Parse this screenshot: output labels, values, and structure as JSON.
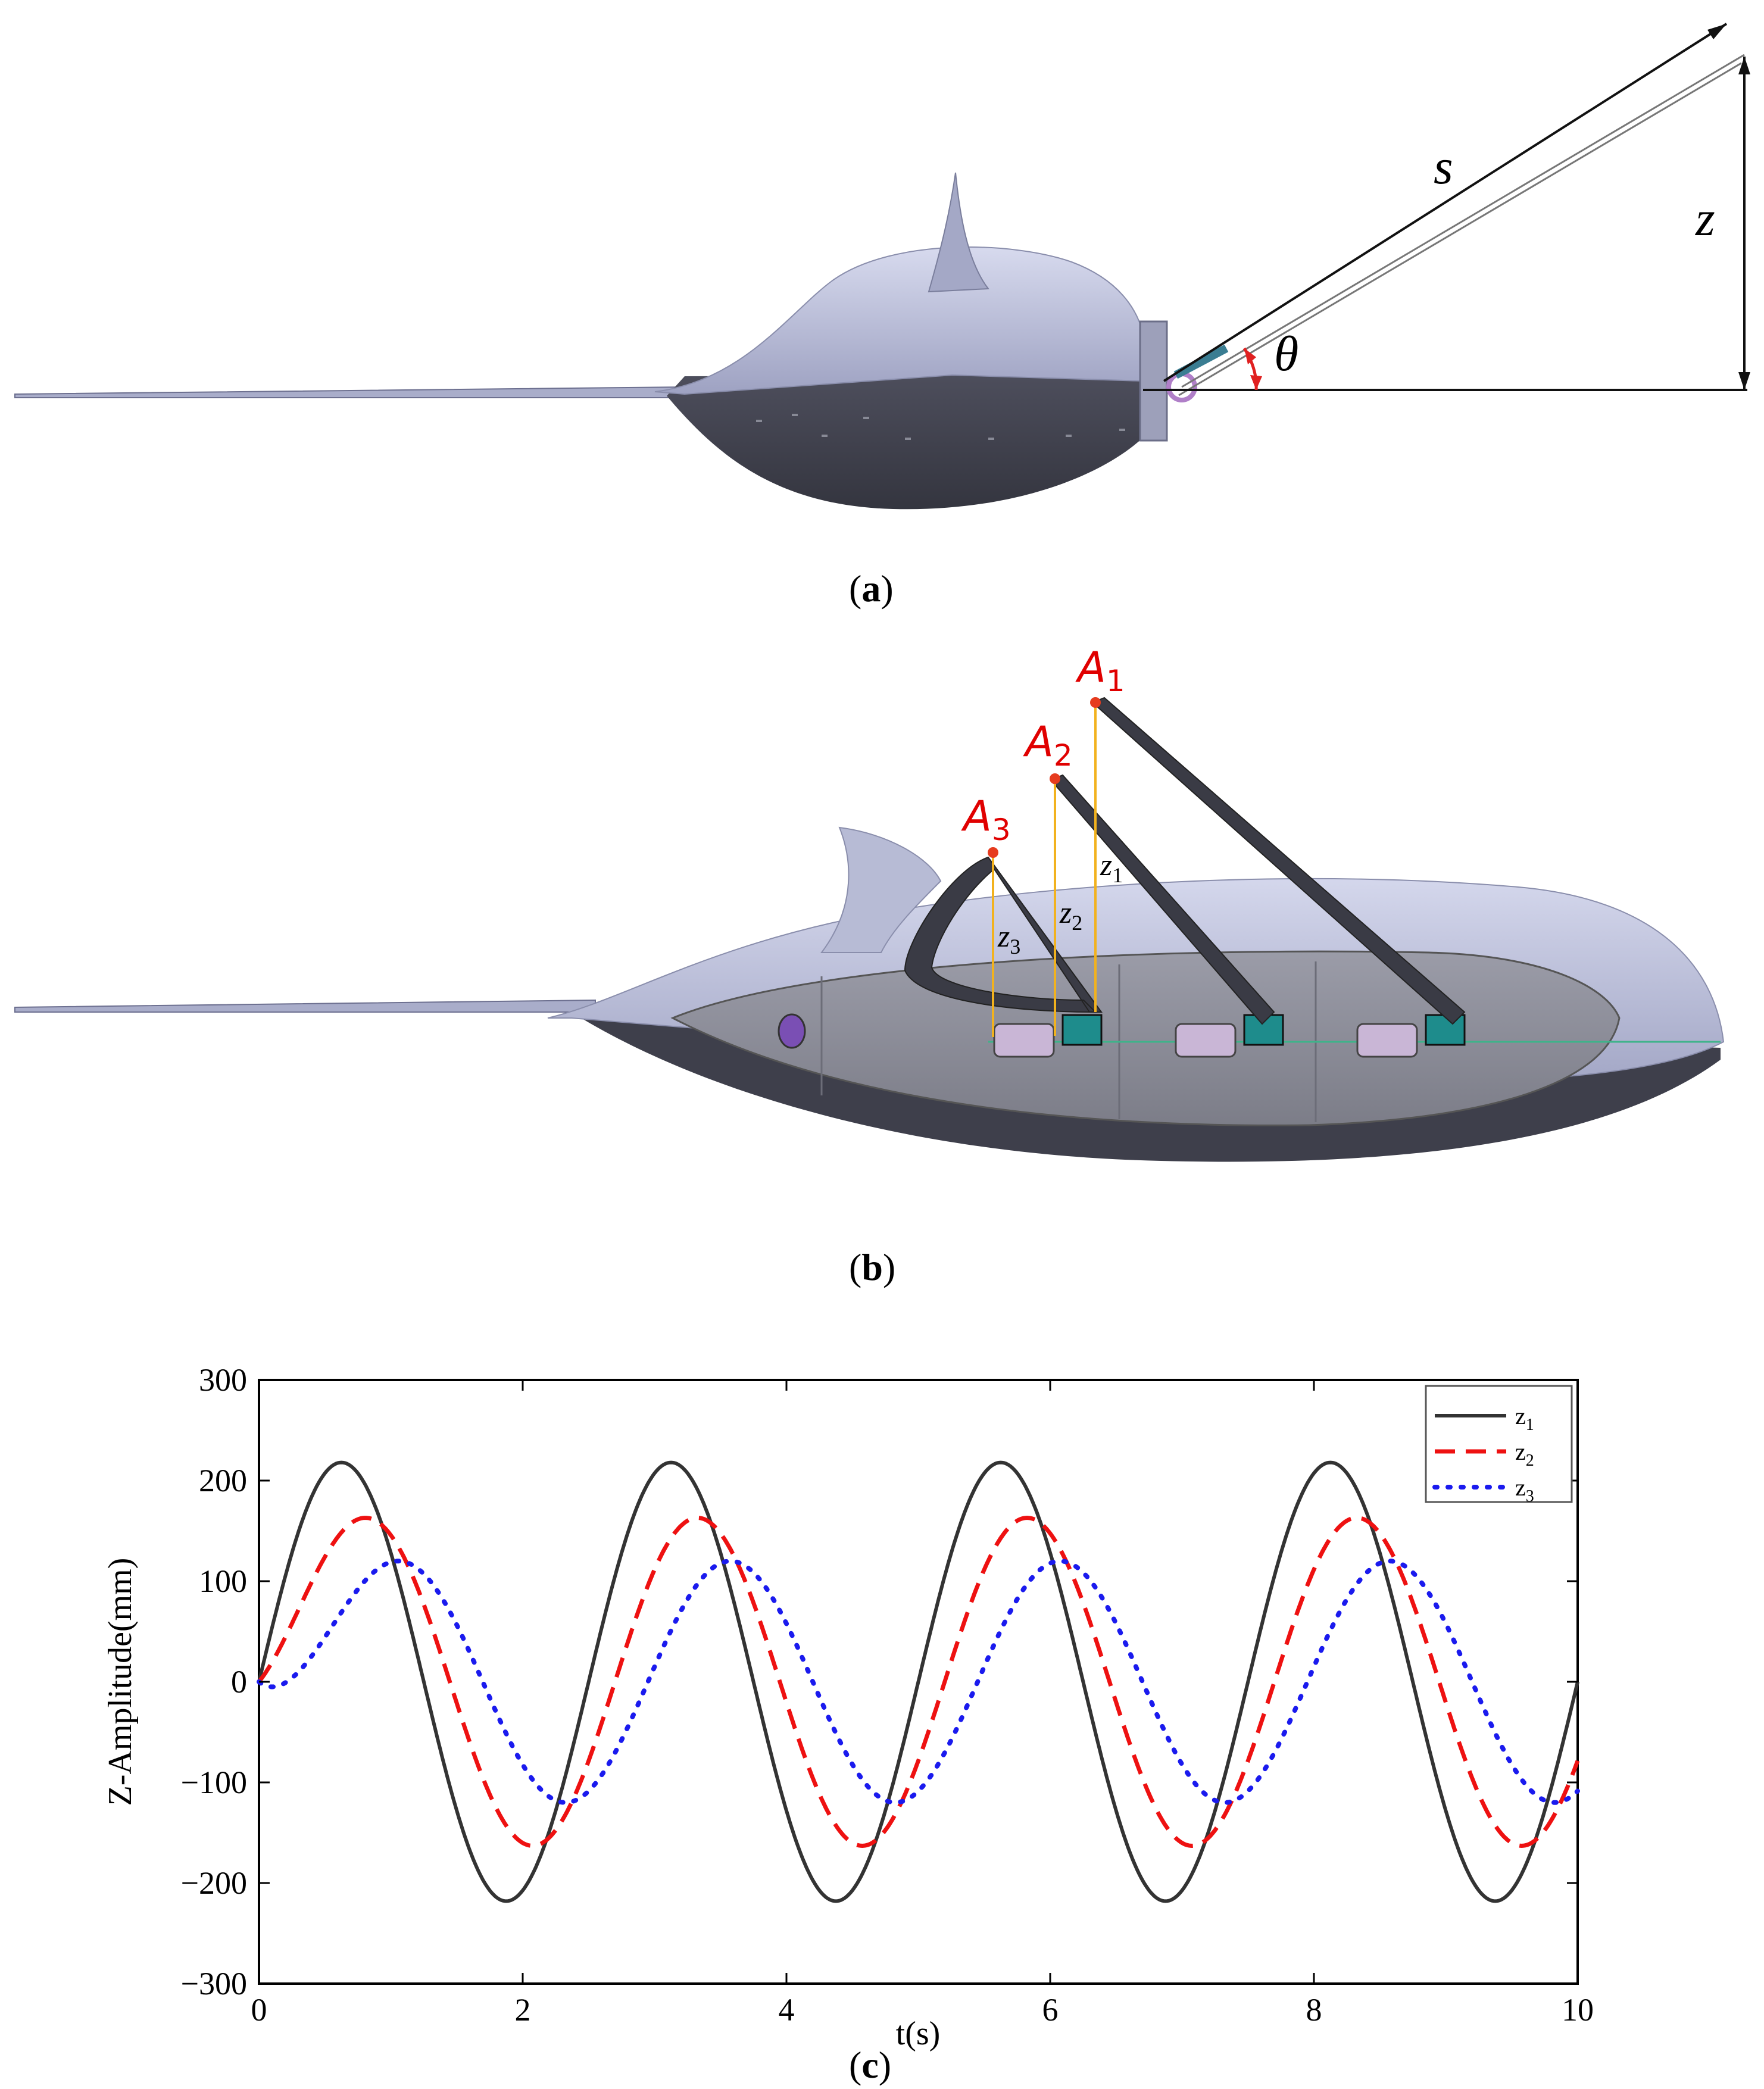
{
  "panels": {
    "a": {
      "caption_open": "(",
      "caption_letter": "a",
      "caption_close": ")",
      "labels": {
        "s": "s",
        "z": "z",
        "theta": "θ"
      }
    },
    "b": {
      "caption_open": "(",
      "caption_letter": "b",
      "caption_close": ")",
      "points": [
        {
          "name": "A",
          "sub": "1"
        },
        {
          "name": "A",
          "sub": "2"
        },
        {
          "name": "A",
          "sub": "3"
        }
      ],
      "heights": [
        {
          "name": "z",
          "sub": "1"
        },
        {
          "name": "z",
          "sub": "2"
        },
        {
          "name": "z",
          "sub": "3"
        }
      ]
    },
    "c": {
      "caption_open": "(",
      "caption_letter": "c",
      "caption_close": ")"
    }
  },
  "colors": {
    "body_light": "#b9bdd6",
    "body_dark": "#3e3f4b",
    "curve_z1": "#333333",
    "curve_z2": "#ee1111",
    "curve_z3": "#1a1aee",
    "label_red": "#e00000",
    "height_line": "#f2b21e"
  },
  "chart_data": {
    "type": "line",
    "xlabel": "t(s)",
    "ylabel": "Z-Amplitude(mm)",
    "xlim": [
      0,
      10
    ],
    "ylim": [
      -300,
      300
    ],
    "xticks": [
      0,
      2,
      4,
      6,
      8,
      10
    ],
    "yticks": [
      300,
      200,
      100,
      0,
      -100,
      -200,
      -300
    ],
    "ytick_labels": [
      "300",
      "200",
      "100",
      "0",
      "−100",
      "−200",
      "−300"
    ],
    "legend_position": "top-right",
    "period_s": 2.5,
    "series": [
      {
        "name": "z",
        "sub": "1",
        "style": "solid",
        "amplitude": 218,
        "phase_lag_s": 0.0,
        "peak_times": [
          0.55,
          2.95,
          5.45,
          7.95
        ],
        "trough_times": [
          1.7,
          4.2,
          6.7,
          9.2
        ]
      },
      {
        "name": "z",
        "sub": "2",
        "style": "dashed",
        "amplitude": 163,
        "phase_lag_s": 0.2,
        "peak_times": [
          0.7,
          3.2,
          5.65,
          8.2
        ],
        "trough_times": [
          1.95,
          4.45,
          6.95,
          9.45
        ]
      },
      {
        "name": "z",
        "sub": "3",
        "style": "dotted",
        "amplitude": 120,
        "phase_lag_s": 0.45,
        "peak_times": [
          0.95,
          3.4,
          5.9,
          8.4
        ],
        "trough_times": [
          2.15,
          4.65,
          7.15,
          9.65
        ]
      }
    ]
  }
}
